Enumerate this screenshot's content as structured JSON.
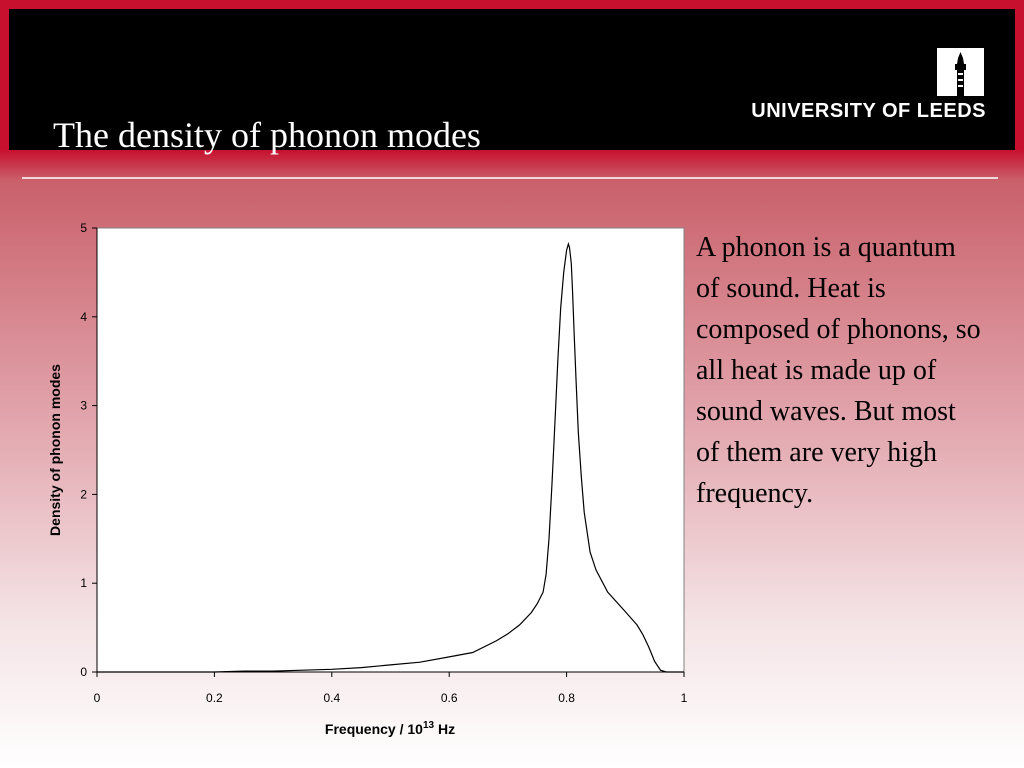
{
  "slide": {
    "title": "The density of phonon modes",
    "logo_text": "UNIVERSITY OF LEEDS",
    "logo_icon": "university-tower-icon",
    "body_text": "A phonon is a quantum of sound. Heat is composed of phonons, so all heat is made up of sound waves. But most of them are very high frequency."
  },
  "colors": {
    "accent": "#c7102e",
    "header_background": "#000000"
  },
  "chart_data": {
    "type": "line",
    "xlabel_main": "Frequency / 10",
    "xlabel_superscript": "13",
    "xlabel_unit": " Hz",
    "ylabel": "Density of phonon modes",
    "xlim": [
      0,
      1
    ],
    "ylim": [
      0,
      5
    ],
    "x_ticks": [
      "0",
      "0.2",
      "0.4",
      "0.6",
      "0.8",
      "1"
    ],
    "y_ticks": [
      "0",
      "1",
      "2",
      "3",
      "4",
      "5"
    ],
    "grid": false,
    "legend": false,
    "series": [
      {
        "x": [
          0,
          0.05,
          0.1,
          0.15,
          0.2,
          0.25,
          0.3,
          0.35,
          0.4,
          0.45,
          0.5,
          0.55,
          0.6,
          0.64,
          0.68,
          0.7,
          0.72,
          0.74,
          0.75,
          0.76,
          0.765,
          0.77,
          0.775,
          0.78,
          0.785,
          0.79,
          0.795,
          0.8,
          0.803,
          0.805,
          0.808,
          0.81,
          0.813,
          0.816,
          0.82,
          0.825,
          0.83,
          0.84,
          0.85,
          0.87,
          0.9,
          0.92,
          0.93,
          0.94,
          0.95,
          0.96,
          0.97,
          1.0
        ],
        "y": [
          0,
          0,
          0,
          0,
          0,
          0.01,
          0.01,
          0.02,
          0.03,
          0.05,
          0.08,
          0.11,
          0.17,
          0.22,
          0.35,
          0.43,
          0.53,
          0.67,
          0.77,
          0.9,
          1.1,
          1.5,
          2.1,
          2.8,
          3.5,
          4.1,
          4.5,
          4.75,
          4.82,
          4.78,
          4.6,
          4.3,
          3.8,
          3.3,
          2.7,
          2.2,
          1.8,
          1.35,
          1.15,
          0.9,
          0.68,
          0.53,
          0.42,
          0.28,
          0.12,
          0.02,
          0,
          0
        ]
      }
    ]
  }
}
